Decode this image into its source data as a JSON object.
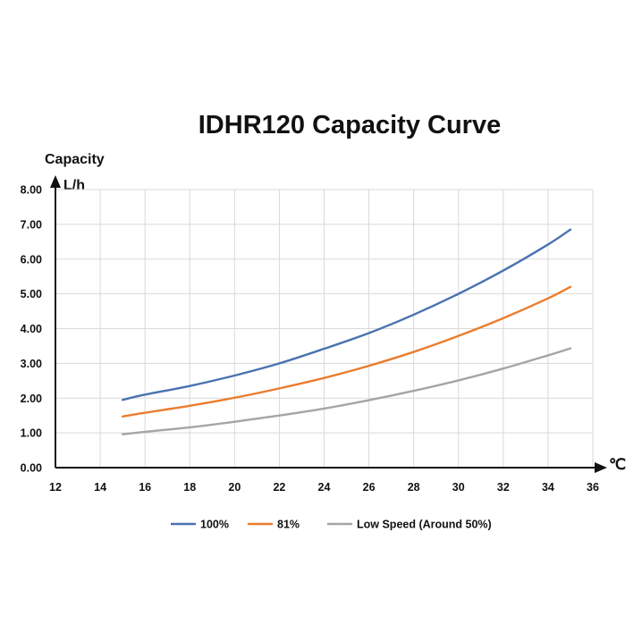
{
  "chart_data": {
    "type": "line",
    "title": "IDHR120  Capacity Curve",
    "ylabel": "Capacity",
    "yunit": "L/h",
    "xlabel": "℃",
    "xlim": [
      12,
      36
    ],
    "ylim": [
      0,
      8
    ],
    "xticks": [
      "12",
      "14",
      "16",
      "18",
      "20",
      "22",
      "24",
      "26",
      "28",
      "30",
      "32",
      "34",
      "36"
    ],
    "yticks": [
      "0.00",
      "1.00",
      "2.00",
      "3.00",
      "4.00",
      "5.00",
      "6.00",
      "7.00",
      "8.00"
    ],
    "grid": true,
    "legend_position": "bottom",
    "series": [
      {
        "name": "100%",
        "color": "#4a72b0",
        "x": [
          15,
          16,
          18,
          20,
          22,
          24,
          26,
          28,
          30,
          32,
          34,
          35
        ],
        "y": [
          1.95,
          2.1,
          2.35,
          2.65,
          3.0,
          3.42,
          3.87,
          4.4,
          5.0,
          5.67,
          6.42,
          6.85
        ]
      },
      {
        "name": "81%",
        "color": "#ea7d2f",
        "x": [
          15,
          16,
          18,
          20,
          22,
          24,
          26,
          28,
          30,
          32,
          34,
          35
        ],
        "y": [
          1.47,
          1.58,
          1.78,
          2.01,
          2.28,
          2.58,
          2.93,
          3.33,
          3.79,
          4.3,
          4.87,
          5.2
        ]
      },
      {
        "name": "Low Speed (Around 50%)",
        "color": "#a5a5a5",
        "x": [
          15,
          16,
          18,
          20,
          22,
          24,
          26,
          28,
          30,
          32,
          34,
          35
        ],
        "y": [
          0.96,
          1.03,
          1.16,
          1.32,
          1.5,
          1.7,
          1.94,
          2.21,
          2.51,
          2.85,
          3.23,
          3.43
        ]
      }
    ]
  }
}
